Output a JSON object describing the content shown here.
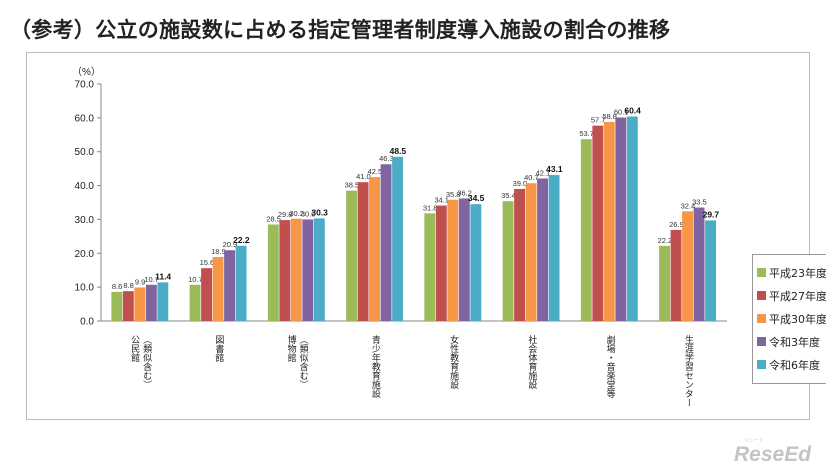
{
  "page_title": "（参考）公立の施設数に占める指定管理者制度導入施設の割合の推移",
  "watermark_text": "ReseEd",
  "watermark_small": "リシード",
  "chart_data": {
    "type": "bar",
    "unit_label": "（%）",
    "ylim": [
      0,
      70
    ],
    "yticks": [
      "0.0",
      "10.0",
      "20.0",
      "30.0",
      "40.0",
      "50.0",
      "60.0",
      "70.0"
    ],
    "grid": false,
    "legend_position": "right",
    "categories": [
      [
        "公民館",
        "（類似含む）"
      ],
      [
        "図書館"
      ],
      [
        "博物館",
        "（類似含む）"
      ],
      [
        "青少年教育施設"
      ],
      [
        "女性教育施設"
      ],
      [
        "社会体育施設"
      ],
      [
        "劇場・音楽堂等"
      ],
      [
        "生涯学習センター"
      ]
    ],
    "series": [
      {
        "name": "平成23年度",
        "color": "#9bbb59",
        "values": [
          8.6,
          10.7,
          28.5,
          38.5,
          31.8,
          35.4,
          53.7,
          22.2
        ],
        "labels": [
          "8.6",
          "10.7",
          "28.5",
          "38.5",
          "31.8",
          "35.4",
          "53.7",
          "22.2"
        ]
      },
      {
        "name": "平成27年度",
        "color": "#c0504d",
        "values": [
          8.8,
          15.6,
          29.8,
          41.0,
          34.1,
          39.0,
          57.7,
          26.9
        ],
        "labels": [
          "8.8",
          "15.6",
          "29.8",
          "41.0",
          "34.1",
          "39.0",
          "57.7",
          "26.9"
        ]
      },
      {
        "name": "平成30年度",
        "color": "#f79646",
        "values": [
          9.9,
          18.9,
          30.2,
          42.5,
          35.8,
          40.7,
          58.8,
          32.4
        ],
        "labels": [
          "9.9",
          "18.9",
          "30.2",
          "42.5",
          "35.8",
          "40.7",
          "58.8",
          "32.4"
        ]
      },
      {
        "name": "令和3年度",
        "color": "#8064a2",
        "values": [
          10.7,
          20.9,
          30.0,
          46.3,
          36.2,
          42.1,
          60.1,
          33.5
        ],
        "labels": [
          "10.7",
          "20.9",
          "30.0",
          "46.3",
          "36.2",
          "42.1",
          "60.1",
          "33.5"
        ]
      },
      {
        "name": "令和6年度",
        "color": "#4bacc6",
        "values": [
          11.4,
          22.2,
          30.3,
          48.5,
          34.5,
          43.1,
          60.4,
          29.7
        ],
        "labels": [
          "11.4",
          "22.2",
          "30.3",
          "48.5",
          "34.5",
          "43.1",
          "60.4",
          "29.7"
        ]
      }
    ]
  }
}
